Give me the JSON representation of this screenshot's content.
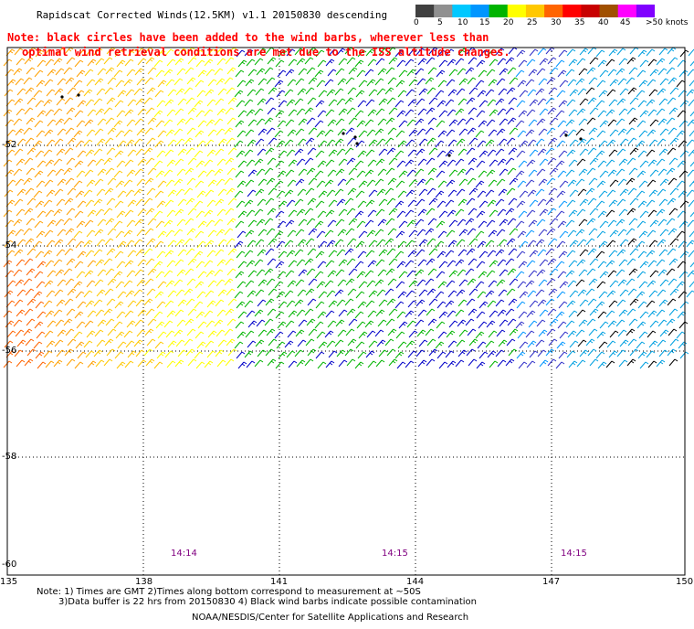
{
  "title": "Rapidscat Corrected Winds(12.5KM) v1.1 20150830 descending",
  "note": {
    "line1": "Note: black circles have been added to the wind barbs, wherever less than",
    "line2": "optimal wind retrieval conditions are met due to the ISS altitude changes."
  },
  "legend": {
    "labels": [
      "0",
      "5",
      "10",
      "15",
      "20",
      "25",
      "30",
      "35",
      "40",
      "45",
      ">50 knots"
    ],
    "colors": [
      "#404040",
      "#909090",
      "#00c8ff",
      "#0096ff",
      "#00b400",
      "#ffff00",
      "#ffc800",
      "#ff6400",
      "#ff0000",
      "#c80000",
      "#a05000",
      "#ff00ff",
      "#8000ff"
    ]
  },
  "axes": {
    "x_ticks": [
      "135",
      "138",
      "141",
      "144",
      "147",
      "150"
    ],
    "y_ticks": [
      "-52",
      "-54",
      "-56",
      "-58",
      "-60"
    ]
  },
  "times": [
    "14:14",
    "14:15",
    "14:15"
  ],
  "footer": {
    "line1": "Note: 1) Times are GMT 2)Times along bottom correspond to measurement at ~50S",
    "line2": "3)Data buffer is 22 hrs from 20150830 4) Black wind barbs indicate possible contamination",
    "line3": "NOAA/NESDIS/Center for Satellite Applications and Research"
  }
}
